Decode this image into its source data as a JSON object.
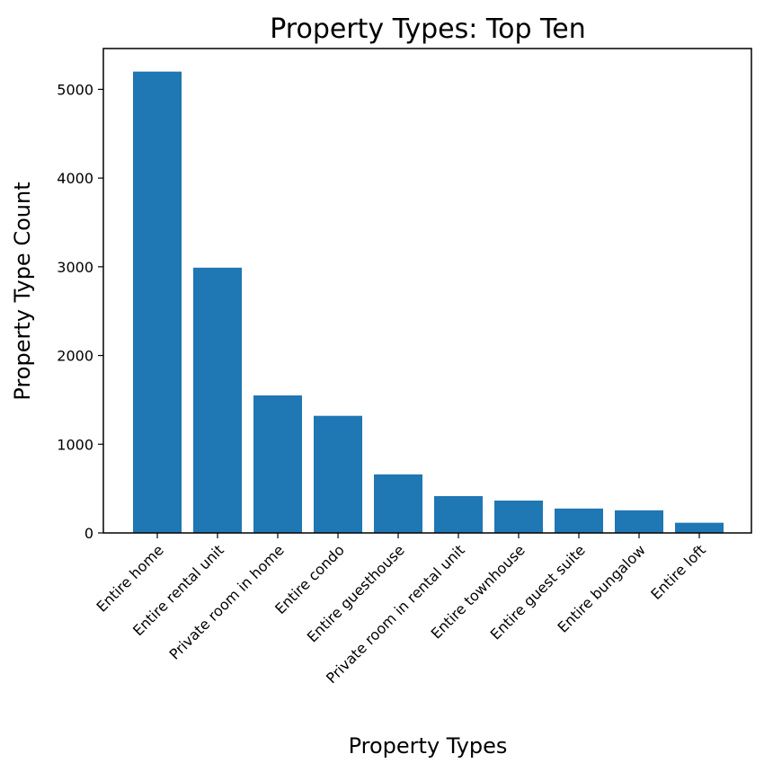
{
  "chart_data": {
    "type": "bar",
    "title": "Property Types: Top Ten",
    "xlabel": "Property Types",
    "ylabel": "Property Type Count",
    "categories": [
      "Entire home",
      "Entire rental unit",
      "Private room in home",
      "Entire condo",
      "Entire guesthouse",
      "Private room in rental unit",
      "Entire townhouse",
      "Entire guest suite",
      "Entire bungalow",
      "Entire loft"
    ],
    "values": [
      5200,
      2990,
      1550,
      1320,
      660,
      415,
      365,
      275,
      255,
      115
    ],
    "ylim": [
      0,
      5460
    ],
    "yticks": [
      0,
      1000,
      2000,
      3000,
      4000,
      5000
    ],
    "grid": false,
    "bar_color": "#1f77b4"
  }
}
